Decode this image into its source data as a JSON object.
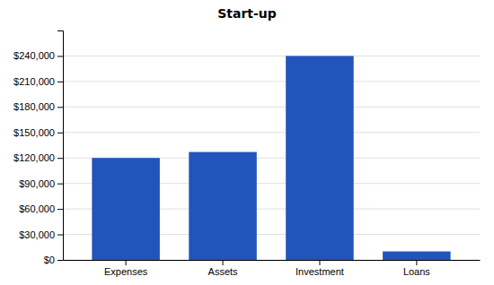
{
  "chart_data": {
    "type": "bar",
    "title": "Start-up",
    "categories": [
      "Expenses",
      "Assets",
      "Investment",
      "Loans"
    ],
    "values": [
      120000,
      127000,
      240000,
      10000
    ],
    "color": "#2255bb",
    "ylim": [
      0,
      270000
    ],
    "yticks": [
      {
        "value": 0,
        "label": "$0"
      },
      {
        "value": 30000,
        "label": "$30,000"
      },
      {
        "value": 60000,
        "label": "$60,000"
      },
      {
        "value": 90000,
        "label": "$90,000"
      },
      {
        "value": 120000,
        "label": "$120,000"
      },
      {
        "value": 150000,
        "label": "$150,000"
      },
      {
        "value": 180000,
        "label": "$180,000"
      },
      {
        "value": 210000,
        "label": "$210,000"
      },
      {
        "value": 240000,
        "label": "$240,000"
      }
    ],
    "grid": true
  }
}
